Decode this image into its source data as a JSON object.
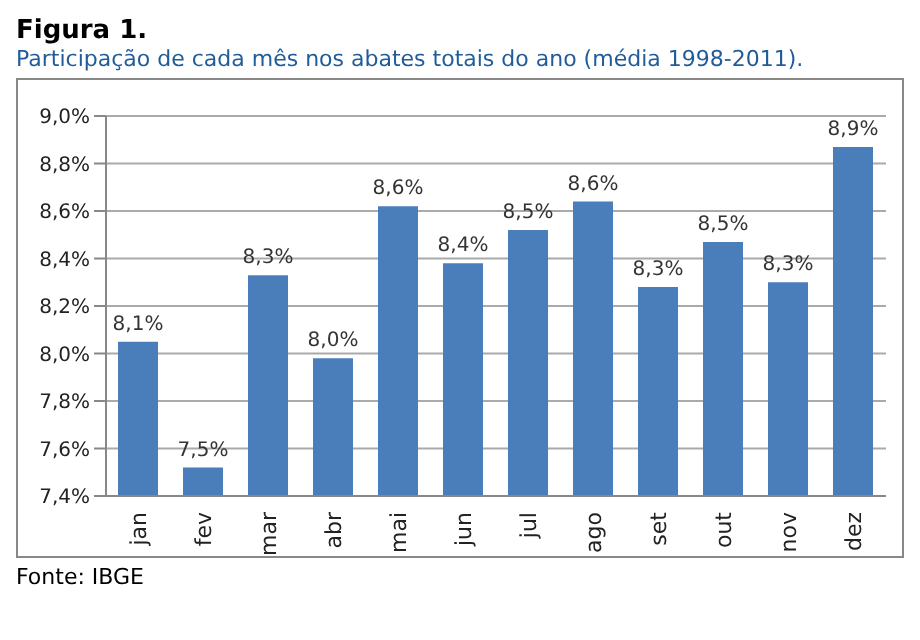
{
  "chart_data": {
    "type": "bar",
    "title": "Figura 1.",
    "subtitle": "Participação  de cada mês nos abates totais  do ano (média 1998-2011).",
    "categories": [
      "jan",
      "fev",
      "mar",
      "abr",
      "mai",
      "jun",
      "jul",
      "ago",
      "set",
      "out",
      "nov",
      "dez"
    ],
    "values": [
      8.05,
      7.52,
      8.33,
      7.98,
      8.62,
      8.38,
      8.52,
      8.64,
      8.28,
      8.47,
      8.3,
      8.87
    ],
    "value_labels": [
      "8,1%",
      "7,5%",
      "8,3%",
      "8,0%",
      "8,6%",
      "8,4%",
      "8,5%",
      "8,6%",
      "8,3%",
      "8,5%",
      "8,3%",
      "8,9%"
    ],
    "color": "#4a7ebb",
    "ylim": [
      7.4,
      9.0
    ],
    "yticks": [
      {
        "value": 7.4,
        "label": "7,4%"
      },
      {
        "value": 7.6,
        "label": "7,6%"
      },
      {
        "value": 7.8,
        "label": "7,8%"
      },
      {
        "value": 8.0,
        "label": "8,0%"
      },
      {
        "value": 8.2,
        "label": "8,2%"
      },
      {
        "value": 8.4,
        "label": "8,4%"
      },
      {
        "value": 8.6,
        "label": "8,6%"
      },
      {
        "value": 8.8,
        "label": "8,8%"
      },
      {
        "value": 9.0,
        "label": "9,0%"
      }
    ],
    "grid": "y",
    "annotations": [
      "Fonte: IBGE"
    ]
  }
}
